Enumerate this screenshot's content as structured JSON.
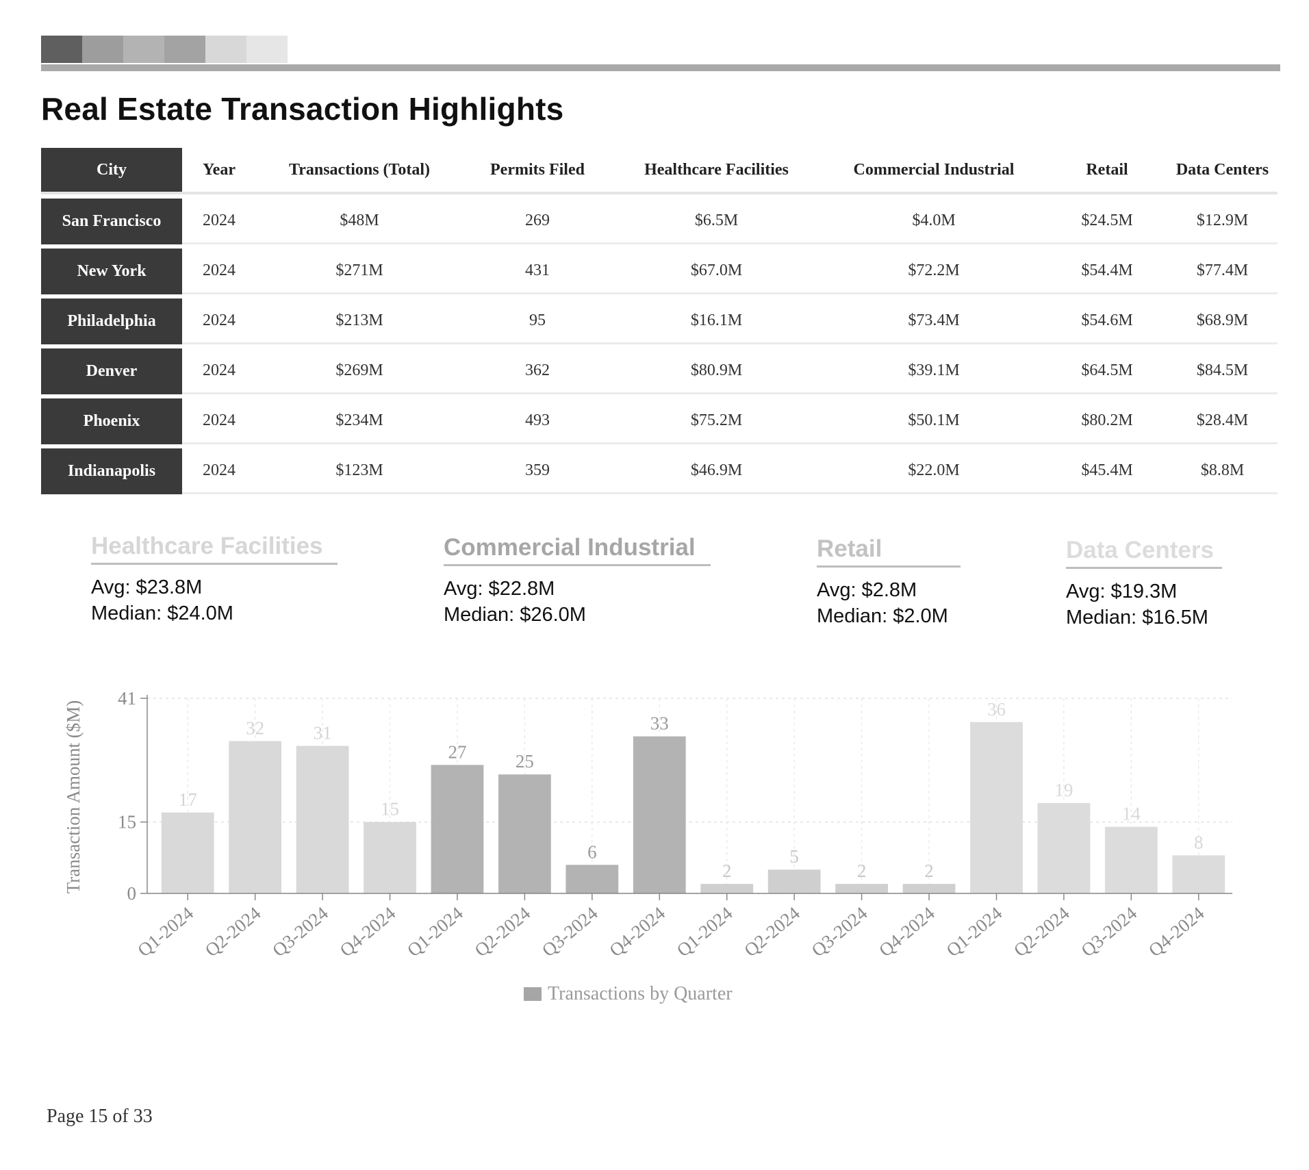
{
  "header": {
    "swatch_colors": [
      "#5f5f5f",
      "#9d9d9d",
      "#b3b3b3",
      "#a3a3a3",
      "#d8d8d8",
      "#e6e6e6"
    ]
  },
  "title": "Real Estate Transaction Highlights",
  "table": {
    "headers": [
      "City",
      "Year",
      "Transactions (Total)",
      "Permits Filed",
      "Healthcare Facilities",
      "Commercial Industrial",
      "Retail",
      "Data Centers"
    ],
    "rows": [
      [
        "San Francisco",
        "2024",
        "$48M",
        "269",
        "$6.5M",
        "$4.0M",
        "$24.5M",
        "$12.9M"
      ],
      [
        "New York",
        "2024",
        "$271M",
        "431",
        "$67.0M",
        "$72.2M",
        "$54.4M",
        "$77.4M"
      ],
      [
        "Philadelphia",
        "2024",
        "$213M",
        "95",
        "$16.1M",
        "$73.4M",
        "$54.6M",
        "$68.9M"
      ],
      [
        "Denver",
        "2024",
        "$269M",
        "362",
        "$80.9M",
        "$39.1M",
        "$64.5M",
        "$84.5M"
      ],
      [
        "Phoenix",
        "2024",
        "$234M",
        "493",
        "$75.2M",
        "$50.1M",
        "$80.2M",
        "$28.4M"
      ],
      [
        "Indianapolis",
        "2024",
        "$123M",
        "359",
        "$46.9M",
        "$22.0M",
        "$45.4M",
        "$8.8M"
      ]
    ]
  },
  "stats": [
    {
      "title": "Healthcare Facilities",
      "avg": "Avg: $23.8M",
      "median": "Median: $24.0M",
      "color": "#d6d6d6"
    },
    {
      "title": "Commercial Industrial",
      "avg": "Avg: $22.8M",
      "median": "Median: $26.0M",
      "color": "#a6a6a6"
    },
    {
      "title": "Retail",
      "avg": "Avg: $2.8M",
      "median": "Median: $2.0M",
      "color": "#c2c2c2"
    },
    {
      "title": "Data Centers",
      "avg": "Avg: $19.3M",
      "median": "Median: $16.5M",
      "color": "#dcdcdc"
    }
  ],
  "chart_data": {
    "type": "bar",
    "categories": [
      "Q1-2024",
      "Q2-2024",
      "Q3-2024",
      "Q4-2024",
      "Q1-2024",
      "Q2-2024",
      "Q3-2024",
      "Q4-2024",
      "Q1-2024",
      "Q2-2024",
      "Q3-2024",
      "Q4-2024",
      "Q1-2024",
      "Q2-2024",
      "Q3-2024",
      "Q4-2024"
    ],
    "values": [
      17,
      32,
      31,
      15,
      27,
      25,
      6,
      33,
      2,
      5,
      2,
      2,
      36,
      19,
      14,
      8
    ],
    "bar_colors": [
      "#d9d9d9",
      "#d9d9d9",
      "#d9d9d9",
      "#d9d9d9",
      "#b3b3b3",
      "#b3b3b3",
      "#b3b3b3",
      "#b3b3b3",
      "#cfcfcf",
      "#cfcfcf",
      "#cfcfcf",
      "#cfcfcf",
      "#dcdcdc",
      "#dcdcdc",
      "#dcdcdc",
      "#dcdcdc"
    ],
    "label_colors": [
      "#d4d4d4",
      "#d4d4d4",
      "#d4d4d4",
      "#d4d4d4",
      "#9a9a9a",
      "#9a9a9a",
      "#9a9a9a",
      "#9a9a9a",
      "#c8c8c8",
      "#c8c8c8",
      "#c8c8c8",
      "#c8c8c8",
      "#d8d8d8",
      "#d8d8d8",
      "#d8d8d8",
      "#d8d8d8"
    ],
    "yticks": [
      0,
      15,
      41
    ],
    "ylim": [
      0,
      41
    ],
    "ylabel": "Transaction Amount ($M)",
    "legend": {
      "label": "Transactions by Quarter",
      "position": "bottom-center"
    },
    "grid": true
  },
  "footer": {
    "page": "Page 15 of 33"
  }
}
